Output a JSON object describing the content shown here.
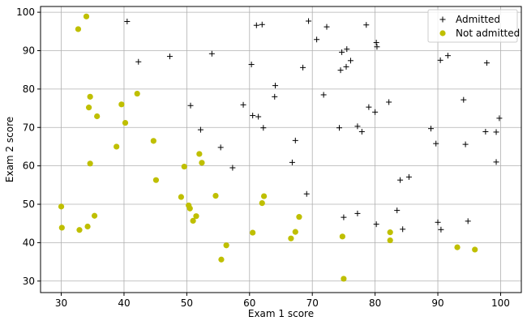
{
  "chart_data": {
    "type": "scatter",
    "xlabel": "Exam 1 score",
    "ylabel": "Exam 2 score",
    "xlim": [
      26.7,
      103.3
    ],
    "ylim": [
      27.0,
      101.5
    ],
    "xticks": [
      30,
      40,
      50,
      60,
      70,
      80,
      90,
      100
    ],
    "yticks": [
      30,
      40,
      50,
      60,
      70,
      80,
      90,
      100
    ],
    "grid": true,
    "legend_position": "top-right",
    "colors": {
      "admitted": "#000000",
      "not_admitted": "#bfbf00"
    },
    "series": [
      {
        "name": "Admitted",
        "marker": "plus",
        "points": [
          [
            40.5,
            97.6
          ],
          [
            42.3,
            87.1
          ],
          [
            47.3,
            88.5
          ],
          [
            50.6,
            75.7
          ],
          [
            52.2,
            69.4
          ],
          [
            54.0,
            89.2
          ],
          [
            55.4,
            64.8
          ],
          [
            57.3,
            59.5
          ],
          [
            59.0,
            75.9
          ],
          [
            60.3,
            86.4
          ],
          [
            60.5,
            73.1
          ],
          [
            61.1,
            96.6
          ],
          [
            61.4,
            72.8
          ],
          [
            62.0,
            96.8
          ],
          [
            62.2,
            69.9
          ],
          [
            64.0,
            78.0
          ],
          [
            64.1,
            80.9
          ],
          [
            66.8,
            60.9
          ],
          [
            67.3,
            66.6
          ],
          [
            68.5,
            85.6
          ],
          [
            69.1,
            52.7
          ],
          [
            69.4,
            97.7
          ],
          [
            70.7,
            92.9
          ],
          [
            71.8,
            78.5
          ],
          [
            72.3,
            96.2
          ],
          [
            74.3,
            69.9
          ],
          [
            74.5,
            84.9
          ],
          [
            74.7,
            89.6
          ],
          [
            75.0,
            46.6
          ],
          [
            75.4,
            85.8
          ],
          [
            75.5,
            90.4
          ],
          [
            76.1,
            87.4
          ],
          [
            77.2,
            70.3
          ],
          [
            77.2,
            47.6
          ],
          [
            77.9,
            68.9
          ],
          [
            78.6,
            96.7
          ],
          [
            79.0,
            75.3
          ],
          [
            80.0,
            74.0
          ],
          [
            80.2,
            92.1
          ],
          [
            80.3,
            91.0
          ],
          [
            80.2,
            44.8
          ],
          [
            82.2,
            76.6
          ],
          [
            83.5,
            48.4
          ],
          [
            84.0,
            56.3
          ],
          [
            84.4,
            43.5
          ],
          [
            85.4,
            57.1
          ],
          [
            88.9,
            69.7
          ],
          [
            89.7,
            65.8
          ],
          [
            90.0,
            45.3
          ],
          [
            90.4,
            87.5
          ],
          [
            90.5,
            43.4
          ],
          [
            91.6,
            88.7
          ],
          [
            94.1,
            77.2
          ],
          [
            94.4,
            65.6
          ],
          [
            94.8,
            45.6
          ],
          [
            97.6,
            68.9
          ],
          [
            97.8,
            86.8
          ],
          [
            99.3,
            68.8
          ],
          [
            99.3,
            61.0
          ],
          [
            99.8,
            72.4
          ]
        ]
      },
      {
        "name": "Not admitted",
        "marker": "circle",
        "points": [
          [
            30.1,
            43.9
          ],
          [
            30.0,
            49.4
          ],
          [
            32.7,
            95.6
          ],
          [
            32.9,
            43.3
          ],
          [
            34.0,
            98.9
          ],
          [
            34.2,
            44.2
          ],
          [
            34.4,
            75.2
          ],
          [
            34.6,
            60.6
          ],
          [
            34.6,
            78.0
          ],
          [
            35.3,
            47.0
          ],
          [
            35.7,
            72.9
          ],
          [
            38.8,
            65.0
          ],
          [
            39.6,
            76.0
          ],
          [
            40.2,
            71.2
          ],
          [
            42.1,
            78.8
          ],
          [
            44.7,
            66.5
          ],
          [
            45.1,
            56.3
          ],
          [
            49.1,
            51.9
          ],
          [
            49.6,
            59.8
          ],
          [
            50.3,
            49.7
          ],
          [
            50.5,
            48.9
          ],
          [
            51.0,
            45.7
          ],
          [
            51.5,
            46.9
          ],
          [
            52.0,
            63.1
          ],
          [
            52.4,
            60.8
          ],
          [
            54.6,
            52.2
          ],
          [
            55.5,
            35.6
          ],
          [
            56.3,
            39.3
          ],
          [
            60.5,
            42.6
          ],
          [
            62.0,
            50.3
          ],
          [
            62.3,
            52.1
          ],
          [
            66.6,
            41.1
          ],
          [
            67.3,
            42.8
          ],
          [
            67.9,
            46.7
          ],
          [
            74.8,
            41.6
          ],
          [
            75.0,
            30.6
          ],
          [
            82.4,
            42.7
          ],
          [
            82.4,
            40.6
          ],
          [
            93.1,
            38.8
          ],
          [
            95.9,
            38.2
          ]
        ]
      }
    ]
  }
}
